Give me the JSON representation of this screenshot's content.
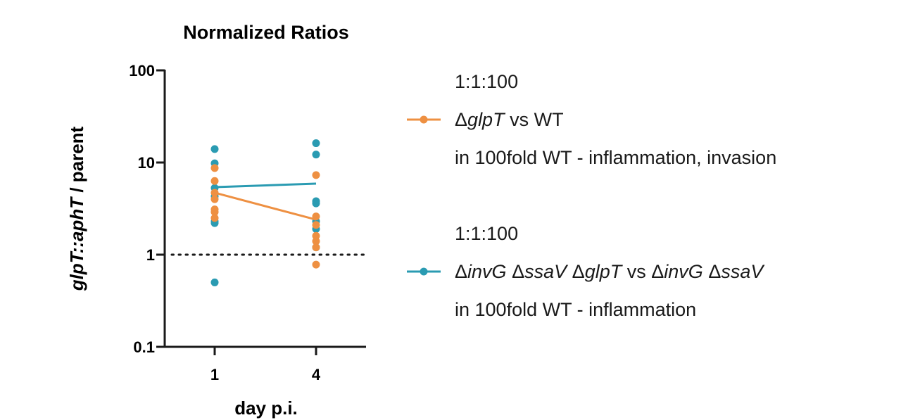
{
  "chart_data": {
    "type": "scatter",
    "title": "Normalized Ratios",
    "xlabel": "day p.i.",
    "ylabel_parts": [
      {
        "text": "glpT::aphT",
        "italic": true
      },
      {
        "text": " / parent",
        "italic": false
      }
    ],
    "yscale": "log",
    "ylim": [
      0.1,
      100
    ],
    "yticks": [
      {
        "value": 0.1,
        "label": "0.1"
      },
      {
        "value": 1,
        "label": "1"
      },
      {
        "value": 10,
        "label": "10"
      },
      {
        "value": 100,
        "label": "100"
      }
    ],
    "categories": [
      "1",
      "4"
    ],
    "reference_line": {
      "y": 1,
      "style": "dotted"
    },
    "series": [
      {
        "name": "ΔglpT vs WT",
        "color": "#EE9042",
        "points": {
          "1": [
            8.7,
            6.3,
            4.7,
            4.0,
            3.1,
            2.9,
            2.5
          ],
          "4": [
            7.3,
            2.6,
            2.1,
            1.6,
            1.4,
            1.2,
            0.78
          ]
        },
        "line": [
          4.7,
          2.4
        ]
      },
      {
        "name": "ΔinvG ΔssaV ΔglpT vs ΔinvG ΔssaV",
        "color": "#2A9BB2",
        "points": {
          "1": [
            14,
            9.8,
            5.3,
            4.3,
            2.3,
            2.2,
            0.5
          ],
          "4": [
            16.2,
            12.2,
            3.8,
            3.6,
            2.3,
            1.9,
            1.2
          ]
        },
        "line": [
          5.4,
          5.9
        ]
      }
    ]
  },
  "legend": {
    "groups": [
      {
        "header": "1:1:100",
        "color": "#EE9042",
        "label_parts": [
          {
            "text": "Δ",
            "italic": false
          },
          {
            "text": "glpT",
            "italic": true
          },
          {
            "text": " vs WT",
            "italic": false
          }
        ],
        "sub": "in 100fold WT - inflammation, invasion"
      },
      {
        "header": "1:1:100",
        "color": "#2A9BB2",
        "label_parts": [
          {
            "text": "Δ",
            "italic": false
          },
          {
            "text": "invG",
            "italic": true
          },
          {
            "text": " Δ",
            "italic": false
          },
          {
            "text": "ssaV",
            "italic": true
          },
          {
            "text": " Δ",
            "italic": false
          },
          {
            "text": "glpT",
            "italic": true
          },
          {
            "text": " vs Δ",
            "italic": false
          },
          {
            "text": "invG",
            "italic": true
          },
          {
            "text": " Δ",
            "italic": false
          },
          {
            "text": "ssaV",
            "italic": true
          }
        ],
        "sub": "in 100fold WT - inflammation"
      }
    ]
  }
}
